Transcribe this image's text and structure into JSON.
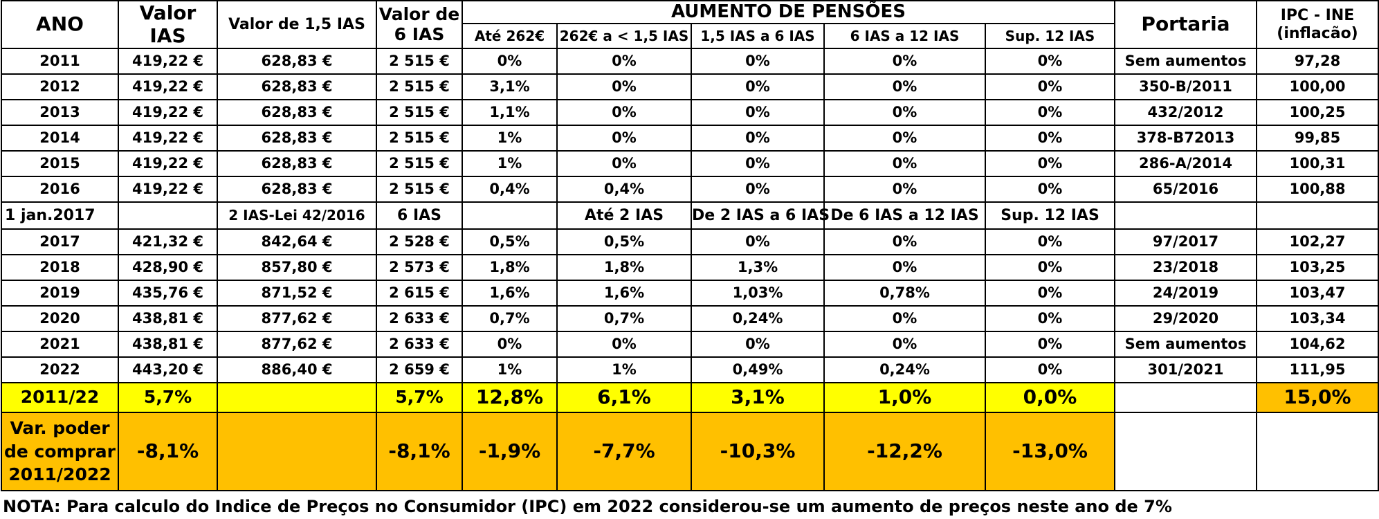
{
  "header": {
    "ano": "ANO",
    "valor_ias": "Valor IAS",
    "valor_15_ias": "Valor de 1,5 IAS",
    "valor_6_ias": "Valor de 6 IAS",
    "aumento": "AUMENTO DE PENSÕES",
    "portaria": "Portaria",
    "ipc": "IPC - INE (inflacão)",
    "sub": [
      "Até 262€",
      "262€ a < 1,5 IAS",
      "1,5 IAS a 6 IAS",
      "6 IAS a 12 IAS",
      "Sup. 12 IAS"
    ]
  },
  "rows_a": [
    {
      "ano": "2011",
      "ias": "419,22 €",
      "v15": "628,83 €",
      "v6": "2 515 €",
      "c1": "0%",
      "c2": "0%",
      "c3": "0%",
      "c4": "0%",
      "c5": "0%",
      "portaria": "Sem aumentos",
      "ipc": "97,28"
    },
    {
      "ano": "2012",
      "ias": "419,22 €",
      "v15": "628,83 €",
      "v6": "2 515 €",
      "c1": "3,1%",
      "c2": "0%",
      "c3": "0%",
      "c4": "0%",
      "c5": "0%",
      "portaria": "350-B/2011",
      "ipc": "100,00"
    },
    {
      "ano": "2013",
      "ias": "419,22 €",
      "v15": "628,83 €",
      "v6": "2 515 €",
      "c1": "1,1%",
      "c2": "0%",
      "c3": "0%",
      "c4": "0%",
      "c5": "0%",
      "portaria": "432/2012",
      "ipc": "100,25"
    },
    {
      "ano": "2014",
      "ias": "419,22 €",
      "v15": "628,83 €",
      "v6": "2 515 €",
      "c1": "1%",
      "c2": "0%",
      "c3": "0%",
      "c4": "0%",
      "c5": "0%",
      "portaria": "378-B72013",
      "ipc": "99,85"
    },
    {
      "ano": "2015",
      "ias": "419,22 €",
      "v15": "628,83 €",
      "v6": "2 515 €",
      "c1": "1%",
      "c2": "0%",
      "c3": "0%",
      "c4": "0%",
      "c5": "0%",
      "portaria": "286-A/2014",
      "ipc": "100,31"
    },
    {
      "ano": "2016",
      "ias": "419,22 €",
      "v15": "628,83 €",
      "v6": "2 515 €",
      "c1": "0,4%",
      "c2": "0,4%",
      "c3": "0%",
      "c4": "0%",
      "c5": "0%",
      "portaria": "65/2016",
      "ipc": "100,88"
    }
  ],
  "section_2017": {
    "ano": "1 jan.2017",
    "v15": "2 IAS-Lei 42/2016",
    "v6": "6 IAS",
    "c2": "Até 2 IAS",
    "c3": "De 2 IAS a 6 IAS",
    "c4": "De 6 IAS a 12 IAS",
    "c5": "Sup. 12 IAS"
  },
  "rows_b": [
    {
      "ano": "2017",
      "ias": "421,32 €",
      "v15": "842,64 €",
      "v6": "2 528 €",
      "c1": "0,5%",
      "c2": "0,5%",
      "c3": "0%",
      "c4": "0%",
      "c5": "0%",
      "portaria": "97/2017",
      "ipc": "102,27"
    },
    {
      "ano": "2018",
      "ias": "428,90 €",
      "v15": "857,80 €",
      "v6": "2 573 €",
      "c1": "1,8%",
      "c2": "1,8%",
      "c3": "1,3%",
      "c4": "0%",
      "c5": "0%",
      "portaria": "23/2018",
      "ipc": "103,25"
    },
    {
      "ano": "2019",
      "ias": "435,76 €",
      "v15": "871,52 €",
      "v6": "2 615 €",
      "c1": "1,6%",
      "c2": "1,6%",
      "c3": "1,03%",
      "c4": "0,78%",
      "c5": "0%",
      "portaria": "24/2019",
      "ipc": "103,47"
    },
    {
      "ano": "2020",
      "ias": "438,81 €",
      "v15": "877,62 €",
      "v6": "2 633 €",
      "c1": "0,7%",
      "c2": "0,7%",
      "c3": "0,24%",
      "c4": "0%",
      "c5": "0%",
      "portaria": "29/2020",
      "ipc": "103,34"
    },
    {
      "ano": "2021",
      "ias": "438,81 €",
      "v15": "877,62 €",
      "v6": "2 633 €",
      "c1": "0%",
      "c2": "0%",
      "c3": "0%",
      "c4": "0%",
      "c5": "0%",
      "portaria": "Sem aumentos",
      "ipc": "104,62"
    },
    {
      "ano": "2022",
      "ias": "443,20 €",
      "v15": "886,40 €",
      "v6": "2 659 €",
      "c1": "1%",
      "c2": "1%",
      "c3": "0,49%",
      "c4": "0,24%",
      "c5": "0%",
      "portaria": "301/2021",
      "ipc": "111,95"
    }
  ],
  "total": {
    "ano": "2011/22",
    "ias": "5,7%",
    "v15": "",
    "v6": "5,7%",
    "c1": "12,8%",
    "c2": "6,1%",
    "c3": "3,1%",
    "c4": "1,0%",
    "c5": "0,0%",
    "portaria": "",
    "ipc": "15,0%"
  },
  "purchase": {
    "label": "Var. poder de comprar 2011/2022",
    "ias": "-8,1%",
    "v15": "",
    "v6": "-8,1%",
    "c1": "-1,9%",
    "c2": "-7,7%",
    "c3": "-10,3%",
    "c4": "-12,2%",
    "c5": "-13,0%",
    "portaria": "",
    "ipc": ""
  },
  "colors": {
    "highlight_yellow": "#ffff00",
    "highlight_orange": "#ffc000"
  },
  "note": "NOTA: Para calculo do Indice de Preços no Consumidor (IPC) em 2022 considerou-se um aumento de preços neste ano de  7%"
}
